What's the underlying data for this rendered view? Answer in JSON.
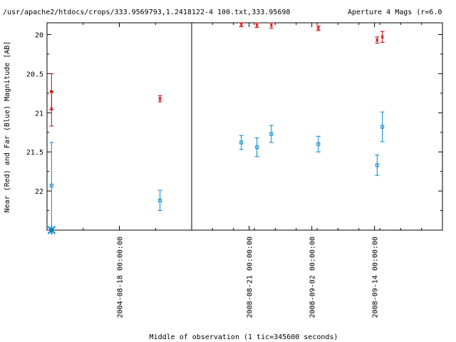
{
  "chart_data": {
    "type": "scatter",
    "title_left": "/usr/apache2/htdocs/crops/333.9569793,1.2418122-4 100.txt,333.95698",
    "title_right": "Aperture 4 Mags (r=6.0",
    "xlabel": "Middle of observation (1 tic=345600 seconds)",
    "ylabel": "Near (Red) and Far (Blue) Magnitude [AB]",
    "ylim": [
      22.5,
      19.85
    ],
    "y_inverted": true,
    "y_ticks": [
      "20",
      "20.5",
      "21",
      "21.5",
      "22"
    ],
    "x_ticks": [
      "2004-08-18 00:00:00",
      "2008-08-21 00:00:00",
      "2008-09-02 00:00:00",
      "2008-09-14 00:00:00"
    ],
    "broken_axis": true,
    "colors": {
      "near": "#cc0000",
      "far": "#0088cc",
      "axis": "#000000"
    },
    "panels": [
      {
        "range": [
          "2004-08-10",
          "2004-08-26"
        ],
        "series": [
          {
            "set": "near",
            "points": [
              {
                "x": "2004-08-10T12:00",
                "y": 20.95,
                "err": 0.22
              },
              {
                "x": "2004-08-10T12:00",
                "y": 20.73,
                "err": 0.23
              },
              {
                "x": "2004-08-22T12:00",
                "y": 20.82,
                "err": 0.04
              }
            ]
          },
          {
            "set": "far",
            "points": [
              {
                "x": "2004-08-10T12:00",
                "y": 21.93,
                "err": 0.55
              },
              {
                "x": "2004-08-22T12:00",
                "y": 22.12,
                "err": 0.13
              }
            ]
          }
        ],
        "markers": [
          {
            "x": "2004-08-10T12:00",
            "y": 22.5
          }
        ]
      },
      {
        "range": [
          "2008-08-10",
          "2008-09-27"
        ],
        "series": [
          {
            "set": "near",
            "points": [
              {
                "x": "2008-08-19T12:00",
                "y": 19.87,
                "err": 0.03
              },
              {
                "x": "2008-08-22T12:00",
                "y": 19.88,
                "err": 0.03
              },
              {
                "x": "2008-08-25T06:00",
                "y": 19.88,
                "err": 0.04
              },
              {
                "x": "2008-09-03T06:00",
                "y": 19.92,
                "err": 0.03
              },
              {
                "x": "2008-09-14T12:00",
                "y": 20.07,
                "err": 0.04
              },
              {
                "x": "2008-09-15T12:00",
                "y": 20.03,
                "err": 0.07
              }
            ]
          },
          {
            "set": "far",
            "points": [
              {
                "x": "2008-08-19T12:00",
                "y": 21.38,
                "err": 0.09
              },
              {
                "x": "2008-08-22T12:00",
                "y": 21.44,
                "err": 0.12
              },
              {
                "x": "2008-08-25T06:00",
                "y": 21.27,
                "err": 0.11
              },
              {
                "x": "2008-09-03T06:00",
                "y": 21.4,
                "err": 0.1
              },
              {
                "x": "2008-09-14T12:00",
                "y": 21.67,
                "err": 0.13
              },
              {
                "x": "2008-09-15T12:00",
                "y": 21.18,
                "err": 0.19
              }
            ]
          }
        ]
      }
    ]
  }
}
